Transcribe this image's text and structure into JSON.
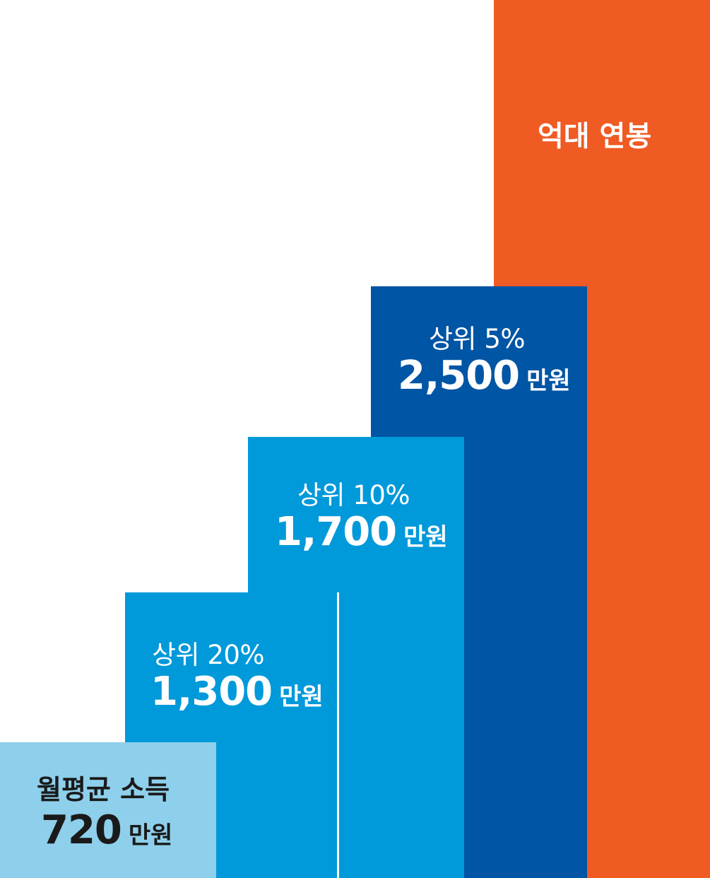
{
  "chart_data": {
    "type": "bar",
    "title": "",
    "xlabel": "",
    "ylabel": "",
    "unit": "만원",
    "categories": [
      "월평균 소득",
      "상위 20%",
      "상위 10%",
      "상위 5%",
      "억대 연봉"
    ],
    "values": [
      720,
      1300,
      1700,
      2500,
      null
    ],
    "value_labels": [
      "720",
      "1,300",
      "1,700",
      "2,500",
      ""
    ],
    "ylim": [
      0,
      3700
    ],
    "grid": false,
    "legend": "none",
    "bar_colors": [
      "#8ecfeb",
      "#0099da",
      "#0099da",
      "#0055a5",
      "#f05a23"
    ],
    "text_colors": [
      "#1a1a1a",
      "#ffffff",
      "#ffffff",
      "#ffffff",
      "#ffffff"
    ]
  },
  "bars": [
    {
      "heading": "월평균 소득",
      "amount": "720",
      "unit": "만원"
    },
    {
      "heading": "상위 20%",
      "amount": "1,300",
      "unit": "만원"
    },
    {
      "heading": "상위 10%",
      "amount": "1,700",
      "unit": "만원"
    },
    {
      "heading": "상위 5%",
      "amount": "2,500",
      "unit": "만원"
    },
    {
      "heading": "억대 연봉"
    }
  ]
}
